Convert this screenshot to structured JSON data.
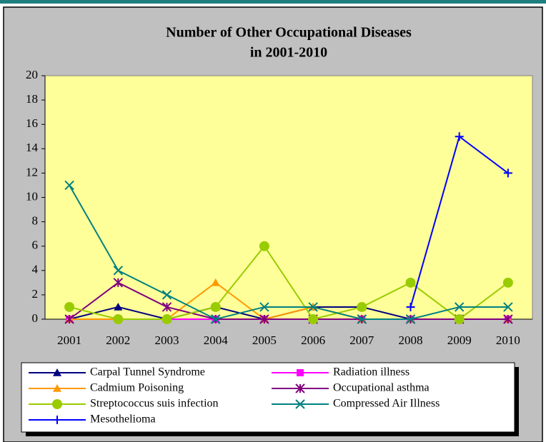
{
  "chart_data": {
    "type": "line",
    "title": [
      "Number of Other Occupational Diseases",
      "in 2001-2010"
    ],
    "categories": [
      "2001",
      "2002",
      "2003",
      "2004",
      "2005",
      "2006",
      "2007",
      "2008",
      "2009",
      "2010"
    ],
    "ylim": [
      0,
      20
    ],
    "yticks": [
      0,
      2,
      4,
      6,
      8,
      10,
      12,
      14,
      16,
      18,
      20
    ],
    "legend": "bottom",
    "series": [
      {
        "name": "Carpal Tunnel Syndrome",
        "color": "#000080",
        "marker": "triangle",
        "values": [
          0,
          1,
          0,
          1,
          0,
          1,
          1,
          0,
          0,
          0
        ]
      },
      {
        "name": "Radiation illness",
        "color": "#ff00ff",
        "marker": "square",
        "values": [
          0,
          0,
          0,
          0,
          0,
          0,
          0,
          0,
          0,
          0
        ]
      },
      {
        "name": "Cadmium Poisoning",
        "color": "#ff9900",
        "marker": "triangle",
        "values": [
          0,
          0,
          0,
          3,
          0,
          1,
          0,
          0,
          0,
          0
        ]
      },
      {
        "name": "Occupational asthma",
        "color": "#800080",
        "marker": "asterisk",
        "values": [
          0,
          3,
          1,
          0,
          0,
          0,
          0,
          0,
          0,
          0
        ]
      },
      {
        "name": "Streptococcus suis infection",
        "color": "#99cc00",
        "marker": "circle",
        "values": [
          1,
          0,
          0,
          1,
          6,
          0,
          1,
          3,
          0,
          3
        ]
      },
      {
        "name": "Compressed Air Illness",
        "color": "#008080",
        "marker": "x",
        "values": [
          11,
          4,
          2,
          0,
          1,
          1,
          0,
          0,
          1,
          1
        ]
      },
      {
        "name": "Mesothelioma",
        "color": "#0000ff",
        "marker": "plus",
        "values": [
          null,
          null,
          null,
          null,
          null,
          null,
          null,
          1,
          15,
          12
        ]
      }
    ]
  }
}
